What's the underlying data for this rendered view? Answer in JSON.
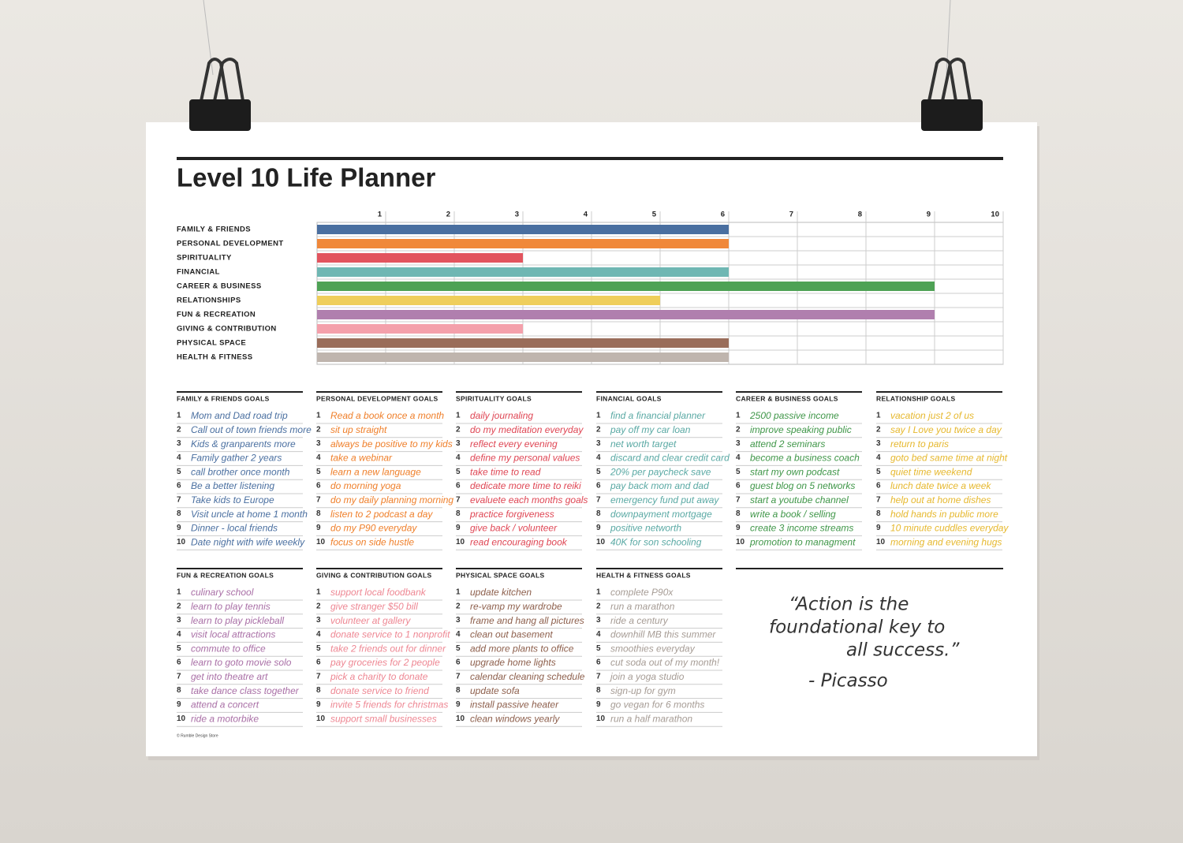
{
  "chart_data": {
    "type": "bar",
    "orientation": "horizontal",
    "title": "Level 10 Life Planner",
    "categories": [
      "FAMILY & FRIENDS",
      "PERSONAL DEVELOPMENT",
      "SPIRITUALITY",
      "FINANCIAL",
      "CAREER & BUSINESS",
      "RELATIONSHIPS",
      "FUN & RECREATION",
      "GIVING & CONTRIBUTION",
      "PHYSICAL SPACE",
      "HEALTH & FITNESS"
    ],
    "values": [
      6,
      6,
      3,
      6,
      9,
      5,
      9,
      3,
      6,
      6
    ],
    "colors": [
      "#4a6fa0",
      "#f0883a",
      "#e2545e",
      "#6fb7b3",
      "#4ea255",
      "#efce5a",
      "#b07fae",
      "#f4a0ab",
      "#9a6d5a",
      "#bfb5ae"
    ],
    "xlim": [
      0,
      10
    ],
    "xticks": [
      1,
      2,
      3,
      4,
      5,
      6,
      7,
      8,
      9,
      10
    ],
    "grid": true
  },
  "goal_groups": [
    {
      "title": "FAMILY & FRIENDS GOALS",
      "color": "#4a6fa0",
      "items": [
        {
          "number": 1,
          "text": "Mom and Dad road trip"
        },
        {
          "number": 2,
          "text": "Call out of town friends more"
        },
        {
          "number": 3,
          "text": "Kids & granparents more"
        },
        {
          "number": 4,
          "text": "Family gather 2 years"
        },
        {
          "number": 5,
          "text": "call brother once month"
        },
        {
          "number": 6,
          "text": "Be a better listening"
        },
        {
          "number": 7,
          "text": "Take kids to Europe"
        },
        {
          "number": 8,
          "text": "Visit uncle at home 1 month"
        },
        {
          "number": 9,
          "text": "Dinner - local friends"
        },
        {
          "number": 10,
          "text": "Date night with wife weekly"
        }
      ]
    },
    {
      "title": "PERSONAL DEVELOPMENT GOALS",
      "color": "#ef7f2a",
      "items": [
        {
          "number": 1,
          "text": "Read a book once a month"
        },
        {
          "number": 2,
          "text": "sit up straight"
        },
        {
          "number": 3,
          "text": "always be positive to my kids"
        },
        {
          "number": 4,
          "text": "take a webinar"
        },
        {
          "number": 5,
          "text": "learn a new language"
        },
        {
          "number": 6,
          "text": "do morning yoga"
        },
        {
          "number": 7,
          "text": "do my daily planning morning"
        },
        {
          "number": 8,
          "text": "listen to 2 podcast a day"
        },
        {
          "number": 9,
          "text": "do my P90 everyday"
        },
        {
          "number": 10,
          "text": "focus on side hustle"
        }
      ]
    },
    {
      "title": "SPIRITUALITY GOALS",
      "color": "#df4654",
      "items": [
        {
          "number": 1,
          "text": "daily journaling"
        },
        {
          "number": 2,
          "text": "do my meditation everyday"
        },
        {
          "number": 3,
          "text": "reflect every evening"
        },
        {
          "number": 4,
          "text": "define my personal values"
        },
        {
          "number": 5,
          "text": "take time to read"
        },
        {
          "number": 6,
          "text": "dedicate more time to reiki"
        },
        {
          "number": 7,
          "text": "evaluete each months goals"
        },
        {
          "number": 8,
          "text": "practice forgiveness"
        },
        {
          "number": 9,
          "text": "give back / volunteer"
        },
        {
          "number": 10,
          "text": "read encouraging book"
        }
      ]
    },
    {
      "title": "FINANCIAL GOALS",
      "color": "#5aa9a4",
      "items": [
        {
          "number": 1,
          "text": "find a financial planner"
        },
        {
          "number": 2,
          "text": "pay off my car loan"
        },
        {
          "number": 3,
          "text": "net worth target"
        },
        {
          "number": 4,
          "text": "discard and clear credit card"
        },
        {
          "number": 5,
          "text": "20% per paycheck save"
        },
        {
          "number": 6,
          "text": "pay back mom and dad"
        },
        {
          "number": 7,
          "text": "emergency fund put away"
        },
        {
          "number": 8,
          "text": "downpayment mortgage"
        },
        {
          "number": 9,
          "text": "positive networth"
        },
        {
          "number": 10,
          "text": "40K for son schooling"
        }
      ]
    },
    {
      "title": "CAREER & BUSINESS GOALS",
      "color": "#3f9648",
      "items": [
        {
          "number": 1,
          "text": "2500 passive income"
        },
        {
          "number": 2,
          "text": "improve speaking public"
        },
        {
          "number": 3,
          "text": "attend 2 seminars"
        },
        {
          "number": 4,
          "text": "become a business coach"
        },
        {
          "number": 5,
          "text": "start my own podcast"
        },
        {
          "number": 6,
          "text": "guest blog on 5 networks"
        },
        {
          "number": 7,
          "text": "start a youtube channel"
        },
        {
          "number": 8,
          "text": "write a book / selling"
        },
        {
          "number": 9,
          "text": "create 3 income streams"
        },
        {
          "number": 10,
          "text": "promotion to managment"
        }
      ]
    },
    {
      "title": "RELATIONSHIP GOALS",
      "color": "#e6b82e",
      "items": [
        {
          "number": 1,
          "text": "vacation just 2 of us"
        },
        {
          "number": 2,
          "text": "say I Love you twice a day"
        },
        {
          "number": 3,
          "text": "return to paris"
        },
        {
          "number": 4,
          "text": "goto bed same time at night"
        },
        {
          "number": 5,
          "text": "quiet time weekend"
        },
        {
          "number": 6,
          "text": "lunch date twice a week"
        },
        {
          "number": 7,
          "text": "help out at home dishes"
        },
        {
          "number": 8,
          "text": "hold hands in public more"
        },
        {
          "number": 9,
          "text": "10 minute cuddles everyday"
        },
        {
          "number": 10,
          "text": "morning and evening hugs"
        }
      ]
    },
    {
      "title": "FUN & RECREATION GOALS",
      "color": "#a96fa6",
      "items": [
        {
          "number": 1,
          "text": "culinary school"
        },
        {
          "number": 2,
          "text": "learn to play tennis"
        },
        {
          "number": 3,
          "text": "learn to play pickleball"
        },
        {
          "number": 4,
          "text": "visit local attractions"
        },
        {
          "number": 5,
          "text": "commute to office"
        },
        {
          "number": 6,
          "text": "learn to goto movie solo"
        },
        {
          "number": 7,
          "text": "get into theatre art"
        },
        {
          "number": 8,
          "text": "take dance class together"
        },
        {
          "number": 9,
          "text": "attend a concert"
        },
        {
          "number": 10,
          "text": "ride a motorbike"
        }
      ]
    },
    {
      "title": "GIVING & CONTRIBUTION GOALS",
      "color": "#ee8793",
      "items": [
        {
          "number": 1,
          "text": "support local foodbank"
        },
        {
          "number": 2,
          "text": "give stranger $50 bill"
        },
        {
          "number": 3,
          "text": "volunteer at gallery"
        },
        {
          "number": 4,
          "text": "donate service to 1 nonprofit"
        },
        {
          "number": 5,
          "text": "take 2 friends out for dinner"
        },
        {
          "number": 6,
          "text": "pay groceries for 2 people"
        },
        {
          "number": 7,
          "text": "pick a charity to donate"
        },
        {
          "number": 8,
          "text": "donate service to friend"
        },
        {
          "number": 9,
          "text": "invite 5 friends for christmas"
        },
        {
          "number": 10,
          "text": "support small businesses"
        }
      ]
    },
    {
      "title": "PHYSICAL SPACE GOALS",
      "color": "#8d5f4c",
      "items": [
        {
          "number": 1,
          "text": "update kitchen"
        },
        {
          "number": 2,
          "text": "re-vamp my wardrobe"
        },
        {
          "number": 3,
          "text": "frame and hang all pictures"
        },
        {
          "number": 4,
          "text": "clean out basement"
        },
        {
          "number": 5,
          "text": "add more plants to office"
        },
        {
          "number": 6,
          "text": "upgrade home lights"
        },
        {
          "number": 7,
          "text": "calendar cleaning schedule"
        },
        {
          "number": 8,
          "text": "update sofa"
        },
        {
          "number": 9,
          "text": "install passive heater"
        },
        {
          "number": 10,
          "text": "clean windows yearly"
        }
      ]
    },
    {
      "title": "HEALTH & FITNESS GOALS",
      "color": "#a69c95",
      "items": [
        {
          "number": 1,
          "text": "complete P90x"
        },
        {
          "number": 2,
          "text": "run a marathon"
        },
        {
          "number": 3,
          "text": "ride a century"
        },
        {
          "number": 4,
          "text": "downhill MB this summer"
        },
        {
          "number": 5,
          "text": "smoothies everyday"
        },
        {
          "number": 6,
          "text": "cut soda out of my month!"
        },
        {
          "number": 7,
          "text": "join a yoga studio"
        },
        {
          "number": 8,
          "text": "sign-up for gym"
        },
        {
          "number": 9,
          "text": "go vegan for 6 months"
        },
        {
          "number": 10,
          "text": "run a half marathon"
        }
      ]
    }
  ],
  "quote": {
    "lines": [
      "“Action is the",
      "foundational key to",
      "all success.”"
    ],
    "author": "- Picasso"
  },
  "footer": "© Rumble Design Store"
}
